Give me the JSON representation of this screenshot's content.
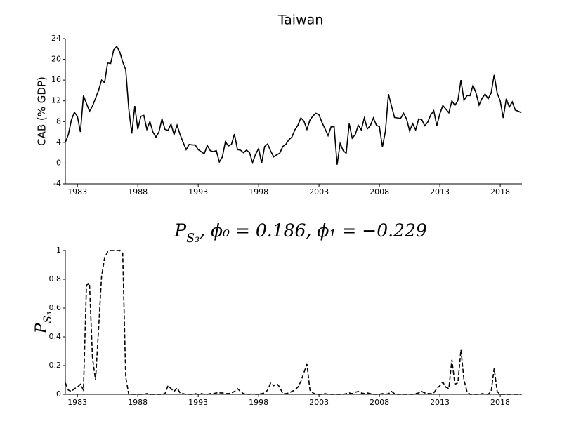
{
  "chart_data": [
    {
      "type": "line",
      "title": "Taiwan",
      "ylabel": "CAB (% GDP)",
      "color": "#000000",
      "linestyle": "solid",
      "x": [
        1982,
        1982.25,
        1982.5,
        1982.75,
        1983,
        1983.25,
        1983.5,
        1983.75,
        1984,
        1984.25,
        1984.5,
        1984.75,
        1985,
        1985.25,
        1985.5,
        1985.75,
        1986,
        1986.25,
        1986.5,
        1986.75,
        1987,
        1987.25,
        1987.5,
        1987.75,
        1988,
        1988.25,
        1988.5,
        1988.75,
        1989,
        1989.25,
        1989.5,
        1989.75,
        1990,
        1990.25,
        1990.5,
        1990.75,
        1991,
        1991.25,
        1991.5,
        1991.75,
        1992,
        1992.25,
        1992.5,
        1992.75,
        1993,
        1993.25,
        1993.5,
        1993.75,
        1994,
        1994.25,
        1994.5,
        1994.75,
        1995,
        1995.25,
        1995.5,
        1995.75,
        1996,
        1996.25,
        1996.5,
        1996.75,
        1997,
        1997.25,
        1997.5,
        1997.75,
        1998,
        1998.25,
        1998.5,
        1998.75,
        1999,
        1999.25,
        1999.5,
        1999.75,
        2000,
        2000.25,
        2000.5,
        2000.75,
        2001,
        2001.25,
        2001.5,
        2001.75,
        2002,
        2002.25,
        2002.5,
        2002.75,
        2003,
        2003.25,
        2003.5,
        2003.75,
        2004,
        2004.25,
        2004.5,
        2004.75,
        2005,
        2005.25,
        2005.5,
        2005.75,
        2006,
        2006.25,
        2006.5,
        2006.75,
        2007,
        2007.25,
        2007.5,
        2007.75,
        2008,
        2008.25,
        2008.5,
        2008.75,
        2009,
        2009.25,
        2009.5,
        2009.75,
        2010,
        2010.25,
        2010.5,
        2010.75,
        2011,
        2011.25,
        2011.5,
        2011.75,
        2012,
        2012.25,
        2012.5,
        2012.75,
        2013,
        2013.25,
        2013.5,
        2013.75,
        2014,
        2014.25,
        2014.5,
        2014.75,
        2015,
        2015.25,
        2015.5,
        2015.75,
        2016,
        2016.25,
        2016.5,
        2016.75,
        2017,
        2017.25,
        2017.5,
        2017.75,
        2018,
        2018.25,
        2018.5,
        2018.75,
        2019,
        2019.25,
        2019.5,
        2019.75
      ],
      "values": [
        4,
        5.5,
        8.3,
        9.8,
        9,
        6,
        13,
        11.5,
        10,
        11,
        12.5,
        14,
        16,
        15.5,
        19.3,
        19.2,
        21.8,
        22.5,
        21.5,
        19.5,
        18,
        10.5,
        5.7,
        11,
        6.5,
        9,
        9.2,
        6.5,
        8,
        6,
        5,
        6,
        8.5,
        6.5,
        6.3,
        7.5,
        5.5,
        7.3,
        5.5,
        4,
        2.6,
        3.6,
        3.5,
        3.5,
        2.6,
        2.2,
        1.8,
        3.4,
        2.4,
        2.2,
        2.4,
        0.2,
        1.2,
        4.1,
        3.3,
        3.6,
        5.6,
        2.6,
        2.5,
        2,
        2.5,
        2,
        0.1,
        1.7,
        2.8,
        0,
        3.2,
        3.7,
        2.3,
        1.2,
        1.6,
        1.9,
        3.2,
        3.6,
        4.5,
        5,
        6.4,
        7.3,
        8.7,
        8.1,
        6.5,
        8.3,
        9.1,
        9.6,
        9.3,
        7.8,
        6.6,
        5.3,
        7,
        7,
        -0.3,
        3.8,
        2.4,
        1.9,
        7.6,
        4.8,
        5.5,
        7.3,
        6.4,
        8.7,
        6.6,
        7.2,
        8.7,
        7.3,
        7,
        3.1,
        6.2,
        13.3,
        11,
        8.8,
        8.7,
        8.6,
        9.6,
        8.5,
        6.2,
        7.6,
        6.4,
        8.5,
        8.4,
        7.2,
        7.9,
        9.3,
        10.1,
        7.2,
        9.5,
        11.1,
        10.4,
        9.7,
        12,
        11.1,
        12.1,
        16,
        12.1,
        13,
        13,
        15,
        13.5,
        11.2,
        12.5,
        13.3,
        12.4,
        13.5,
        17,
        13.5,
        12,
        8.7,
        12.4,
        10.8,
        11.8,
        10.2,
        10,
        9.7
      ],
      "xlim": [
        1982,
        2019.8
      ],
      "xticks": [
        1983,
        1988,
        1993,
        1998,
        2003,
        2008,
        2013,
        2018
      ],
      "ylim": [
        -4,
        24
      ],
      "yticks": [
        -4,
        0,
        4,
        8,
        12,
        16,
        20,
        24
      ]
    },
    {
      "type": "line",
      "title": [
        "P",
        "S₃",
        ", ϕ₀ = 0.186, ϕ₁ = −0.229"
      ],
      "ylabel": [
        "P",
        "S₃"
      ],
      "color": "#000000",
      "linestyle": "dashed",
      "x": [
        1982,
        1982.25,
        1982.5,
        1982.75,
        1983,
        1983.25,
        1983.5,
        1983.75,
        1984,
        1984.25,
        1984.5,
        1984.75,
        1985,
        1985.25,
        1985.5,
        1985.75,
        1986,
        1986.25,
        1986.5,
        1986.75,
        1987,
        1987.25,
        1987.5,
        1987.75,
        1988,
        1988.25,
        1988.5,
        1988.75,
        1989,
        1989.25,
        1989.5,
        1989.75,
        1990,
        1990.25,
        1990.5,
        1990.75,
        1991,
        1991.25,
        1991.5,
        1991.75,
        1992,
        1992.25,
        1992.5,
        1992.75,
        1993,
        1993.25,
        1993.5,
        1993.75,
        1994,
        1994.25,
        1994.5,
        1994.75,
        1995,
        1995.25,
        1995.5,
        1995.75,
        1996,
        1996.25,
        1996.5,
        1996.75,
        1997,
        1997.25,
        1997.5,
        1997.75,
        1998,
        1998.25,
        1998.5,
        1998.75,
        1999,
        1999.25,
        1999.5,
        1999.75,
        2000,
        2000.25,
        2000.5,
        2000.75,
        2001,
        2001.25,
        2001.5,
        2001.75,
        2002,
        2002.25,
        2002.5,
        2002.75,
        2003,
        2003.25,
        2003.5,
        2003.75,
        2004,
        2004.25,
        2004.5,
        2004.75,
        2005,
        2005.25,
        2005.5,
        2005.75,
        2006,
        2006.25,
        2006.5,
        2006.75,
        2007,
        2007.25,
        2007.5,
        2007.75,
        2008,
        2008.25,
        2008.5,
        2008.75,
        2009,
        2009.25,
        2009.5,
        2009.75,
        2010,
        2010.25,
        2010.5,
        2010.75,
        2011,
        2011.25,
        2011.5,
        2011.75,
        2012,
        2012.25,
        2012.5,
        2012.75,
        2013,
        2013.25,
        2013.5,
        2013.75,
        2014,
        2014.25,
        2014.5,
        2014.75,
        2015,
        2015.25,
        2015.5,
        2015.75,
        2016,
        2016.25,
        2016.5,
        2016.75,
        2017,
        2017.25,
        2017.5,
        2017.75,
        2018,
        2018.25,
        2018.5,
        2018.75,
        2019,
        2019.25,
        2019.5,
        2019.75
      ],
      "values": [
        0.08,
        0.03,
        0.02,
        0.04,
        0.05,
        0.07,
        0.03,
        0.76,
        0.77,
        0.25,
        0.1,
        0.45,
        0.82,
        0.95,
        0.99,
        1,
        1,
        1,
        1,
        0.98,
        0.12,
        0,
        0,
        0,
        0,
        0,
        0,
        0.005,
        0,
        0,
        0,
        0,
        0,
        0.005,
        0.06,
        0.04,
        0.02,
        0.045,
        0.01,
        0.005,
        0,
        0,
        0,
        0.005,
        0,
        0.005,
        0,
        0,
        0.005,
        0.005,
        0.01,
        0.01,
        0.01,
        0.005,
        0.005,
        0.01,
        0.02,
        0.04,
        0.02,
        0.005,
        0,
        0,
        0.005,
        0,
        0,
        0.005,
        0.01,
        0.03,
        0.08,
        0.06,
        0.075,
        0.05,
        0.005,
        0.005,
        0.01,
        0.02,
        0.03,
        0.05,
        0.09,
        0.15,
        0.21,
        0.03,
        0.01,
        0,
        0,
        0,
        0.005,
        0,
        0,
        0,
        0,
        0,
        0,
        0.005,
        0.01,
        0.005,
        0.015,
        0.02,
        0.01,
        0.005,
        0.01,
        0.005,
        0,
        0,
        0,
        0.005,
        0,
        0.005,
        0.02,
        0.005,
        0,
        0,
        0,
        0,
        0,
        0,
        0.005,
        0.01,
        0.02,
        0.01,
        0.005,
        0.005,
        0.01,
        0.04,
        0.06,
        0.085,
        0.05,
        0.04,
        0.24,
        0.07,
        0.08,
        0.31,
        0.1,
        0.02,
        0,
        0,
        0,
        0,
        0.005,
        0,
        0,
        0.02,
        0.18,
        0.02,
        0,
        0,
        0,
        0,
        0,
        0,
        0,
        0
      ],
      "xlim": [
        1982,
        2019.8
      ],
      "xticks": [
        1983,
        1988,
        1993,
        1998,
        2003,
        2008,
        2013,
        2018
      ],
      "ylim": [
        0,
        1
      ],
      "yticks": [
        0,
        0.2,
        0.4,
        0.6,
        0.8,
        1
      ]
    }
  ]
}
